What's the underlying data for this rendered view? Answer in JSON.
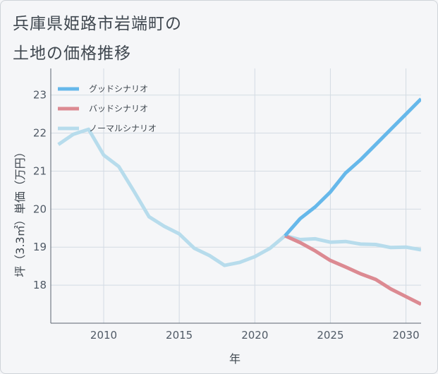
{
  "title_line1": "兵庫県姫路市岩端町の",
  "title_line2": "土地の価格推移",
  "chart_data": {
    "type": "line",
    "xlabel": "年",
    "ylabel": "坪（3.3㎡）単価（万円）",
    "xlim": [
      2006.5,
      2031
    ],
    "ylim": [
      17.0,
      23.7
    ],
    "xticks": [
      2010,
      2015,
      2020,
      2025,
      2030
    ],
    "yticks": [
      18,
      19,
      20,
      21,
      22,
      23
    ],
    "grid": true,
    "legend_position": "top-left",
    "series": [
      {
        "name": "グッドシナリオ",
        "color": "#66b8ea",
        "x": [
          2022,
          2023,
          2024,
          2025,
          2026,
          2027,
          2028,
          2029,
          2030,
          2031
        ],
        "y": [
          19.3,
          19.75,
          20.06,
          20.45,
          20.95,
          21.3,
          21.7,
          22.1,
          22.5,
          22.9
        ]
      },
      {
        "name": "バッドシナリオ",
        "color": "#dc8a92",
        "x": [
          2022,
          2023,
          2024,
          2025,
          2026,
          2027,
          2028,
          2029,
          2030,
          2031
        ],
        "y": [
          19.3,
          19.12,
          18.9,
          18.65,
          18.48,
          18.3,
          18.15,
          17.9,
          17.7,
          17.5
        ]
      },
      {
        "name": "ノーマルシナリオ",
        "color": "#b7dcec",
        "x": [
          2007,
          2008,
          2009,
          2010,
          2011,
          2012,
          2013,
          2014,
          2015,
          2016,
          2017,
          2018,
          2019,
          2020,
          2021,
          2022,
          2023,
          2024,
          2025,
          2026,
          2027,
          2028,
          2029,
          2030,
          2031
        ],
        "y": [
          21.7,
          21.97,
          22.1,
          21.42,
          21.12,
          20.47,
          19.8,
          19.55,
          19.35,
          18.97,
          18.78,
          18.52,
          18.6,
          18.75,
          18.97,
          19.3,
          19.2,
          19.22,
          19.13,
          19.15,
          19.08,
          19.07,
          18.99,
          19.0,
          18.93
        ]
      }
    ]
  }
}
